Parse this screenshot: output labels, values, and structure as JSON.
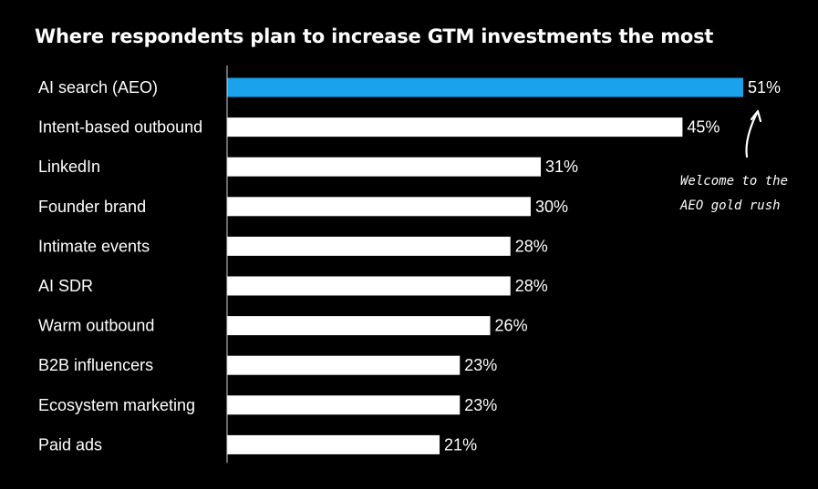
{
  "title": "Where respondents plan to increase GTM investments the most",
  "annotation": {
    "line1": "Welcome to the",
    "line2": "AEO gold rush"
  },
  "colors": {
    "background": "#000000",
    "highlight": "#1aa3ec",
    "bar": "#ffffff",
    "text": "#ffffff"
  },
  "chart_data": {
    "type": "bar",
    "orientation": "horizontal",
    "title": "Where respondents plan to increase GTM investments the most",
    "categories": [
      "AI search (AEO)",
      "Intent-based outbound",
      "LinkedIn",
      "Founder brand",
      "Intimate events",
      "AI SDR",
      "Warm outbound",
      "B2B influencers",
      "Ecosystem marketing",
      "Paid ads"
    ],
    "values": [
      51,
      45,
      31,
      30,
      28,
      28,
      26,
      23,
      23,
      21
    ],
    "value_labels": [
      "51%",
      "45%",
      "31%",
      "30%",
      "28%",
      "28%",
      "26%",
      "23%",
      "23%",
      "21%"
    ],
    "highlight_index": 0,
    "unit": "%",
    "xlim": [
      0,
      51
    ],
    "xlabel": "",
    "ylabel": ""
  }
}
